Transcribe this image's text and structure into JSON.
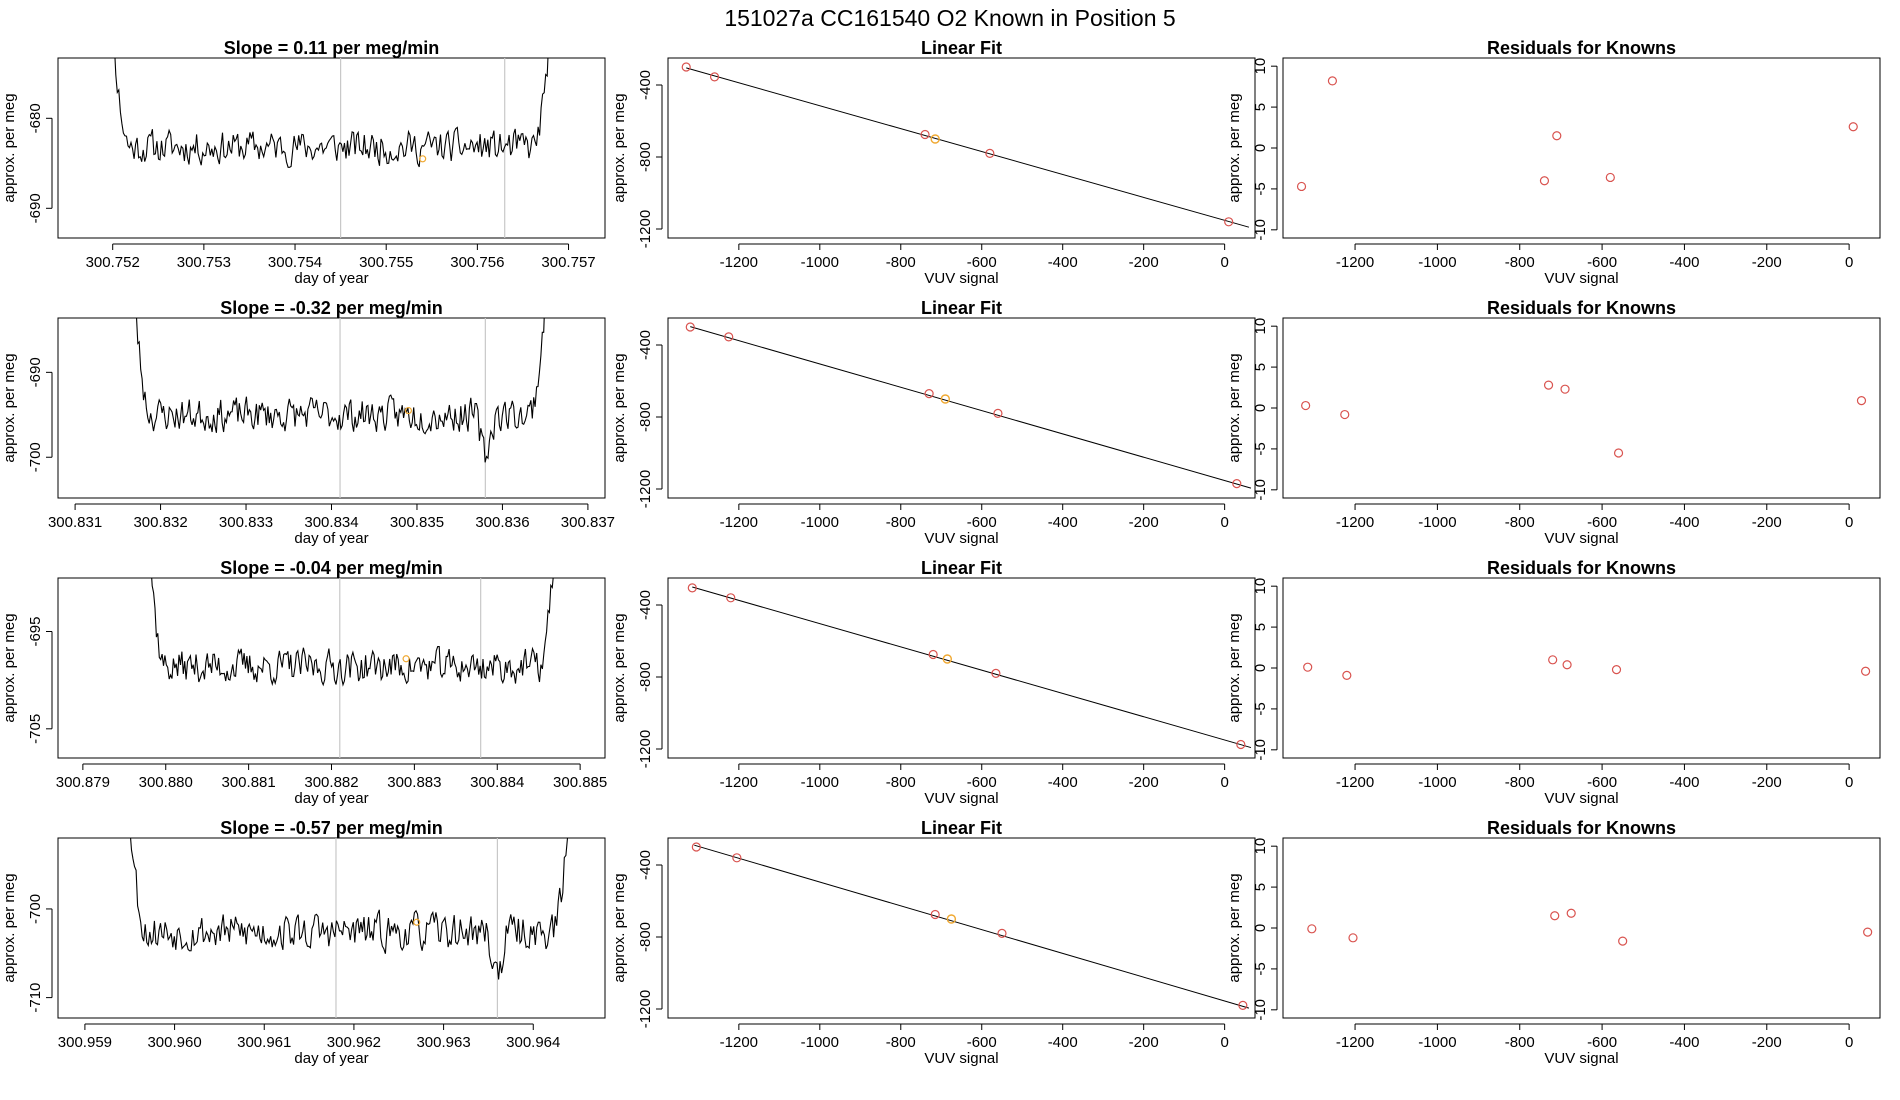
{
  "page_title": "151027a      CC161540    O2 Known in Position  5",
  "colors": {
    "line": "#000000",
    "known": "#d9534f",
    "highlight": "#f0a830",
    "vline": "#c8c8c8",
    "axis": "#000000"
  },
  "chart_data": [
    {
      "type": "line",
      "row": 1,
      "title": "Slope =  0.11  per meg/min",
      "xlabel": "day of year",
      "ylabel": "approx. per meg",
      "xlim": [
        300.7514,
        300.7574
      ],
      "ylim": [
        -693.3,
        -673.3
      ],
      "xticks": [
        300.752,
        300.753,
        300.754,
        300.755,
        300.756,
        300.757
      ],
      "xtick_labels": [
        "300.752",
        "300.753",
        "300.754",
        "300.755",
        "300.756",
        "300.757"
      ],
      "yticks": [
        -680,
        -690
      ],
      "ytick_labels": [
        "-680",
        "-690"
      ],
      "vlines": [
        300.7545,
        300.7563
      ],
      "series": {
        "start": 300.7519,
        "end": 300.7569,
        "points": 300,
        "base": -683.2,
        "amp": 1.6,
        "seed": 11,
        "left_rise": 0.0003,
        "right_rise": 0.0003,
        "dip": 0
      },
      "highlight_point": {
        "x": 300.7554,
        "y": -684.5
      }
    },
    {
      "type": "scatter",
      "row": 1,
      "title": "Linear Fit",
      "xlabel": "VUV signal",
      "ylabel": "approx. per meg",
      "xlim": [
        -1375,
        75
      ],
      "ylim": [
        -1250,
        -250
      ],
      "xticks": [
        -1200,
        -1000,
        -800,
        -600,
        -400,
        -200,
        0
      ],
      "xtick_labels": [
        "-1200",
        "-1000",
        "-800",
        "-600",
        "-400",
        "-200",
        "0"
      ],
      "yticks": [
        -400,
        -800,
        -1200
      ],
      "ytick_labels": [
        "-400",
        "-800",
        "-1200"
      ],
      "fit_line": {
        "x": [
          -1330,
          60
        ],
        "y": [
          -305,
          -1190
        ]
      },
      "knowns": {
        "x": [
          -1330,
          -1260,
          -740,
          -580,
          10
        ],
        "y": [
          -300,
          -355,
          -675,
          -780,
          -1160
        ]
      },
      "highlight_point": {
        "x": -715,
        "y": -700
      }
    },
    {
      "type": "scatter",
      "row": 1,
      "title": "Residuals for Knowns",
      "xlabel": "VUV signal",
      "ylabel": "approx. per meg",
      "xlim": [
        -1375,
        75
      ],
      "ylim": [
        -11,
        11
      ],
      "xticks": [
        -1200,
        -1000,
        -800,
        -600,
        -400,
        -200,
        0
      ],
      "xtick_labels": [
        "-1200",
        "-1000",
        "-800",
        "-600",
        "-400",
        "-200",
        "0"
      ],
      "yticks": [
        -10,
        -5,
        0,
        5,
        10
      ],
      "ytick_labels": [
        "-10",
        "-5",
        "0",
        "5",
        "10"
      ],
      "points": {
        "x": [
          -1330,
          -1255,
          -740,
          -710,
          -580,
          10
        ],
        "y": [
          -4.7,
          8.2,
          -4.0,
          1.5,
          -3.6,
          2.6
        ]
      }
    },
    {
      "type": "line",
      "row": 2,
      "title": "Slope =  -0.32  per meg/min",
      "xlabel": "day of year",
      "ylabel": "approx. per meg",
      "xlim": [
        300.8308,
        300.8372
      ],
      "ylim": [
        -704.8,
        -683.6
      ],
      "xticks": [
        300.831,
        300.832,
        300.833,
        300.834,
        300.835,
        300.836,
        300.837
      ],
      "xtick_labels": [
        "300.831",
        "300.832",
        "300.833",
        "300.834",
        "300.835",
        "300.836",
        "300.837"
      ],
      "yticks": [
        -690,
        -700
      ],
      "ytick_labels": [
        "-690",
        "-700"
      ],
      "vlines": [
        300.8341,
        300.8358
      ],
      "series": {
        "start": 300.8316,
        "end": 300.8366,
        "points": 300,
        "base": -695.0,
        "amp": 1.7,
        "seed": 23,
        "left_rise": 0.0003,
        "right_rise": 0.0003,
        "dip": 300.8358
      },
      "highlight_point": {
        "x": 300.8349,
        "y": -694.5
      }
    },
    {
      "type": "scatter",
      "row": 2,
      "title": "Linear Fit",
      "xlabel": "VUV signal",
      "ylabel": "approx. per meg",
      "xlim": [
        -1375,
        75
      ],
      "ylim": [
        -1250,
        -250
      ],
      "xticks": [
        -1200,
        -1000,
        -800,
        -600,
        -400,
        -200,
        0
      ],
      "xtick_labels": [
        "-1200",
        "-1000",
        "-800",
        "-600",
        "-400",
        "-200",
        "0"
      ],
      "yticks": [
        -400,
        -800,
        -1200
      ],
      "ytick_labels": [
        "-400",
        "-800",
        "-1200"
      ],
      "fit_line": {
        "x": [
          -1320,
          65
        ],
        "y": [
          -298,
          -1195
        ]
      },
      "knowns": {
        "x": [
          -1320,
          -1225,
          -730,
          -560,
          30
        ],
        "y": [
          -300,
          -355,
          -670,
          -780,
          -1170
        ]
      },
      "highlight_point": {
        "x": -690,
        "y": -700
      }
    },
    {
      "type": "scatter",
      "row": 2,
      "title": "Residuals for Knowns",
      "xlabel": "VUV signal",
      "ylabel": "approx. per meg",
      "xlim": [
        -1375,
        75
      ],
      "ylim": [
        -11,
        11
      ],
      "xticks": [
        -1200,
        -1000,
        -800,
        -600,
        -400,
        -200,
        0
      ],
      "xtick_labels": [
        "-1200",
        "-1000",
        "-800",
        "-600",
        "-400",
        "-200",
        "0"
      ],
      "yticks": [
        -10,
        -5,
        0,
        5,
        10
      ],
      "ytick_labels": [
        "-10",
        "-5",
        "0",
        "5",
        "10"
      ],
      "points": {
        "x": [
          -1320,
          -1225,
          -730,
          -690,
          -560,
          30
        ],
        "y": [
          0.3,
          -0.8,
          2.8,
          2.3,
          -5.5,
          0.9
        ]
      }
    },
    {
      "type": "line",
      "row": 3,
      "title": "Slope =  -0.04  per meg/min",
      "xlabel": "day of year",
      "ylabel": "approx. per meg",
      "xlim": [
        300.8787,
        300.8853
      ],
      "ylim": [
        -708.0,
        -689.5
      ],
      "xticks": [
        300.879,
        300.88,
        300.881,
        300.882,
        300.883,
        300.884,
        300.885
      ],
      "xtick_labels": [
        "300.879",
        "300.880",
        "300.881",
        "300.882",
        "300.883",
        "300.884",
        "300.885"
      ],
      "yticks": [
        -695,
        -705
      ],
      "ytick_labels": [
        "-695",
        "-705"
      ],
      "vlines": [
        300.8821,
        300.8838
      ],
      "series": {
        "start": 300.8797,
        "end": 300.8848,
        "points": 300,
        "base": -698.6,
        "amp": 1.5,
        "seed": 37,
        "left_rise": 0.0003,
        "right_rise": 0.0003,
        "dip": 0
      },
      "highlight_point": {
        "x": 300.8829,
        "y": -697.8
      }
    },
    {
      "type": "scatter",
      "row": 3,
      "title": "Linear Fit",
      "xlabel": "VUV signal",
      "ylabel": "approx. per meg",
      "xlim": [
        -1375,
        75
      ],
      "ylim": [
        -1250,
        -250
      ],
      "xticks": [
        -1200,
        -1000,
        -800,
        -600,
        -400,
        -200,
        0
      ],
      "xtick_labels": [
        "-1200",
        "-1000",
        "-800",
        "-600",
        "-400",
        "-200",
        "0"
      ],
      "yticks": [
        -400,
        -800,
        -1200
      ],
      "ytick_labels": [
        "-400",
        "-800",
        "-1200"
      ],
      "fit_line": {
        "x": [
          -1315,
          65
        ],
        "y": [
          -300,
          -1192
        ]
      },
      "knowns": {
        "x": [
          -1315,
          -1220,
          -720,
          -565,
          40
        ],
        "y": [
          -305,
          -360,
          -675,
          -780,
          -1175
        ]
      },
      "highlight_point": {
        "x": -685,
        "y": -700
      }
    },
    {
      "type": "scatter",
      "row": 3,
      "title": "Residuals for Knowns",
      "xlabel": "VUV signal",
      "ylabel": "approx. per meg",
      "xlim": [
        -1375,
        75
      ],
      "ylim": [
        -11,
        11
      ],
      "xticks": [
        -1200,
        -1000,
        -800,
        -600,
        -400,
        -200,
        0
      ],
      "xtick_labels": [
        "-1200",
        "-1000",
        "-800",
        "-600",
        "-400",
        "-200",
        "0"
      ],
      "yticks": [
        -10,
        -5,
        0,
        5,
        10
      ],
      "ytick_labels": [
        "-10",
        "-5",
        "0",
        "5",
        "10"
      ],
      "points": {
        "x": [
          -1315,
          -1220,
          -720,
          -685,
          -565,
          40
        ],
        "y": [
          0.1,
          -0.9,
          1.0,
          0.4,
          -0.2,
          -0.4
        ]
      }
    },
    {
      "type": "line",
      "row": 4,
      "title": "Slope =  -0.57  per meg/min",
      "xlabel": "day of year",
      "ylabel": "approx. per meg",
      "xlim": [
        300.9587,
        300.9648
      ],
      "ylim": [
        -712.3,
        -692.0
      ],
      "xticks": [
        300.959,
        300.96,
        300.961,
        300.962,
        300.963,
        300.964
      ],
      "xtick_labels": [
        "300.959",
        "300.960",
        "300.961",
        "300.962",
        "300.963",
        "300.964"
      ],
      "yticks": [
        -700,
        -710
      ],
      "ytick_labels": [
        "-700",
        "-710"
      ],
      "vlines": [
        300.9618,
        300.9636
      ],
      "series": {
        "start": 300.9594,
        "end": 300.9645,
        "points": 300,
        "base": -702.6,
        "amp": 1.8,
        "seed": 53,
        "left_rise": 0.0003,
        "right_rise": 0.0003,
        "dip": 300.9636
      },
      "highlight_point": {
        "x": 300.9627,
        "y": -701.5
      }
    },
    {
      "type": "scatter",
      "row": 4,
      "title": "Linear Fit",
      "xlabel": "VUV signal",
      "ylabel": "approx. per meg",
      "xlim": [
        -1375,
        75
      ],
      "ylim": [
        -1250,
        -250
      ],
      "xticks": [
        -1200,
        -1000,
        -800,
        -600,
        -400,
        -200,
        0
      ],
      "xtick_labels": [
        "-1200",
        "-1000",
        "-800",
        "-600",
        "-400",
        "-200",
        "0"
      ],
      "yticks": [
        -400,
        -800,
        -1200
      ],
      "ytick_labels": [
        "-400",
        "-800",
        "-1200"
      ],
      "fit_line": {
        "x": [
          -1310,
          60
        ],
        "y": [
          -290,
          -1195
        ]
      },
      "knowns": {
        "x": [
          -1305,
          -1205,
          -715,
          -550,
          45
        ],
        "y": [
          -300,
          -360,
          -675,
          -780,
          -1180
        ]
      },
      "highlight_point": {
        "x": -675,
        "y": -700
      }
    },
    {
      "type": "scatter",
      "row": 4,
      "title": "Residuals for Knowns",
      "xlabel": "VUV signal",
      "ylabel": "approx. per meg",
      "xlim": [
        -1375,
        75
      ],
      "ylim": [
        -11,
        11
      ],
      "xticks": [
        -1200,
        -1000,
        -800,
        -600,
        -400,
        -200,
        0
      ],
      "xtick_labels": [
        "-1200",
        "-1000",
        "-800",
        "-600",
        "-400",
        "-200",
        "0"
      ],
      "yticks": [
        -10,
        -5,
        0,
        5,
        10
      ],
      "ytick_labels": [
        "-10",
        "-5",
        "0",
        "5",
        "10"
      ],
      "points": {
        "x": [
          -1305,
          -1205,
          -715,
          -675,
          -550,
          45
        ],
        "y": [
          -0.1,
          -1.2,
          1.5,
          1.8,
          -1.6,
          -0.5
        ]
      }
    }
  ]
}
